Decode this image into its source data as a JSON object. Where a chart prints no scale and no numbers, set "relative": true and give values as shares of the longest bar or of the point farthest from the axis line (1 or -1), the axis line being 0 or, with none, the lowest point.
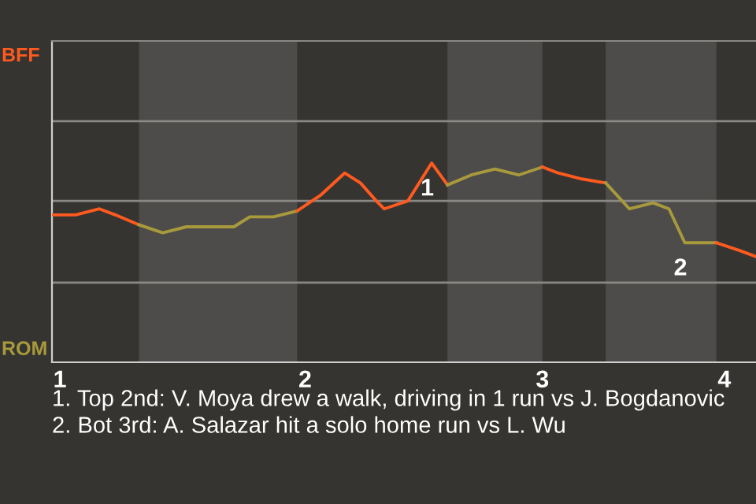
{
  "chart_data": {
    "type": "line",
    "relative": true,
    "categories": [
      null,
      "1",
      null,
      null,
      null,
      null,
      null,
      null,
      null,
      null,
      null,
      null,
      null,
      null,
      null,
      null,
      null,
      null,
      null,
      null,
      null,
      null,
      null,
      null,
      null,
      null,
      null,
      null,
      null,
      null,
      null,
      null,
      "2",
      null,
      null,
      null,
      null,
      null,
      null,
      null,
      null,
      null,
      null,
      null,
      null,
      null,
      null,
      null,
      null,
      null,
      null,
      null,
      null,
      null,
      null,
      null,
      null,
      null,
      null,
      null,
      null,
      null,
      "3",
      null,
      null,
      null,
      null,
      null,
      null,
      null,
      null,
      null,
      null,
      null,
      null,
      null,
      null,
      null,
      null,
      null,
      null,
      null,
      null,
      null,
      null,
      "4",
      null,
      null,
      null,
      null
    ],
    "series": [
      {
        "color": "#ff5a1f",
        "values": [
          0.74,
          null,
          0.74,
          0.74,
          null,
          null,
          0.77,
          null,
          0.74,
          null,
          null,
          0.69,
          null,
          null,
          null,
          null,
          null,
          null,
          null,
          null,
          null,
          null,
          null,
          null,
          null,
          null,
          null,
          null,
          null,
          null,
          null,
          null,
          null,
          null,
          null,
          null,
          null,
          null,
          null,
          null,
          null,
          null,
          null,
          null,
          null,
          null,
          null,
          null,
          null,
          null,
          null,
          null,
          null,
          null,
          null,
          null,
          null,
          null,
          null,
          null,
          null,
          null,
          null,
          null,
          null,
          null,
          null,
          null,
          null,
          null,
          null,
          null,
          null,
          null,
          null,
          null,
          null,
          null,
          null,
          null,
          null,
          null,
          null,
          null,
          null,
          null,
          null,
          null,
          null,
          null
        ]
      },
      {
        "color": "#a89a3c",
        "values": [
          null,
          null,
          null,
          null,
          null,
          null,
          null,
          null,
          null,
          null,
          null,
          0.69,
          null,
          null,
          0.65,
          null,
          null,
          0.68,
          null,
          null,
          null,
          null,
          null,
          0.68,
          null,
          0.73,
          null,
          null,
          0.73,
          null,
          null,
          0.76,
          null,
          null,
          null,
          null,
          null,
          null,
          null,
          null,
          null,
          null,
          null,
          null,
          null,
          null,
          null,
          null,
          null,
          null,
          null,
          null,
          null,
          null,
          null,
          null,
          null,
          null,
          null,
          null,
          null,
          null,
          null,
          null,
          null,
          null,
          null,
          null,
          null,
          null,
          null,
          null,
          null,
          null,
          null,
          null,
          null,
          null,
          null,
          null,
          null,
          null,
          null,
          null,
          null,
          null,
          null,
          null,
          null,
          null
        ]
      },
      {
        "color": "#ff5a1f",
        "values": [
          null,
          null,
          null,
          null,
          null,
          null,
          null,
          null,
          null,
          null,
          null,
          null,
          null,
          null,
          null,
          null,
          null,
          null,
          null,
          null,
          null,
          null,
          null,
          null,
          null,
          null,
          null,
          null,
          null,
          null,
          null,
          0.76,
          null,
          null,
          0.84,
          null,
          null,
          0.95,
          null,
          0.9,
          null,
          0.81,
          0.77,
          null,
          null,
          0.81,
          null,
          null,
          1.0,
          null,
          0.89,
          null,
          null,
          null,
          null,
          null,
          null,
          null,
          null,
          null,
          null,
          null,
          null,
          null,
          null,
          null,
          null,
          null,
          null,
          null,
          null,
          null,
          null,
          null,
          null,
          null,
          null,
          null,
          null,
          null,
          null,
          null,
          null,
          null,
          null,
          null,
          null,
          null,
          null,
          null
        ]
      },
      {
        "color": "#a89a3c",
        "values": [
          null,
          null,
          null,
          null,
          null,
          null,
          null,
          null,
          null,
          null,
          null,
          null,
          null,
          null,
          null,
          null,
          null,
          null,
          null,
          null,
          null,
          null,
          null,
          null,
          null,
          null,
          null,
          null,
          null,
          null,
          null,
          null,
          null,
          null,
          null,
          null,
          null,
          null,
          null,
          null,
          null,
          null,
          null,
          null,
          null,
          null,
          null,
          null,
          null,
          null,
          0.89,
          null,
          null,
          0.94,
          null,
          null,
          0.97,
          null,
          null,
          0.94,
          null,
          null,
          0.98,
          null,
          null,
          null,
          null,
          null,
          null,
          null,
          null,
          null,
          null,
          null,
          null,
          null,
          null,
          null,
          null,
          null,
          null,
          null,
          null,
          null,
          null,
          null,
          null,
          null,
          null,
          null
        ]
      },
      {
        "color": "#ff5a1f",
        "values": [
          null,
          null,
          null,
          null,
          null,
          null,
          null,
          null,
          null,
          null,
          null,
          null,
          null,
          null,
          null,
          null,
          null,
          null,
          null,
          null,
          null,
          null,
          null,
          null,
          null,
          null,
          null,
          null,
          null,
          null,
          null,
          null,
          null,
          null,
          null,
          null,
          null,
          null,
          null,
          null,
          null,
          null,
          null,
          null,
          null,
          null,
          null,
          null,
          null,
          null,
          null,
          null,
          null,
          null,
          null,
          null,
          null,
          null,
          null,
          null,
          null,
          null,
          0.98,
          null,
          0.95,
          null,
          null,
          0.92,
          null,
          null,
          0.9,
          null,
          null,
          null,
          null,
          null,
          null,
          null,
          null,
          null,
          null,
          null,
          null,
          null,
          null,
          null,
          null,
          null,
          null,
          null
        ]
      },
      {
        "color": "#a89a3c",
        "values": [
          null,
          null,
          null,
          null,
          null,
          null,
          null,
          null,
          null,
          null,
          null,
          null,
          null,
          null,
          null,
          null,
          null,
          null,
          null,
          null,
          null,
          null,
          null,
          null,
          null,
          null,
          null,
          null,
          null,
          null,
          null,
          null,
          null,
          null,
          null,
          null,
          null,
          null,
          null,
          null,
          null,
          null,
          null,
          null,
          null,
          null,
          null,
          null,
          null,
          null,
          null,
          null,
          null,
          null,
          null,
          null,
          null,
          null,
          null,
          null,
          null,
          null,
          null,
          null,
          null,
          null,
          null,
          null,
          null,
          null,
          0.9,
          null,
          null,
          0.77,
          null,
          null,
          0.8,
          null,
          0.77,
          null,
          0.6,
          null,
          null,
          null,
          0.6,
          null,
          null,
          null,
          null,
          null
        ]
      },
      {
        "color": "#ff5a1f",
        "values": [
          null,
          null,
          null,
          null,
          null,
          null,
          null,
          null,
          null,
          null,
          null,
          null,
          null,
          null,
          null,
          null,
          null,
          null,
          null,
          null,
          null,
          null,
          null,
          null,
          null,
          null,
          null,
          null,
          null,
          null,
          null,
          null,
          null,
          null,
          null,
          null,
          null,
          null,
          null,
          null,
          null,
          null,
          null,
          null,
          null,
          null,
          null,
          null,
          null,
          null,
          null,
          null,
          null,
          null,
          null,
          null,
          null,
          null,
          null,
          null,
          null,
          null,
          null,
          null,
          null,
          null,
          null,
          null,
          null,
          null,
          null,
          null,
          null,
          null,
          null,
          null,
          null,
          null,
          null,
          null,
          null,
          null,
          null,
          null,
          0.6,
          null,
          null,
          0.56,
          null,
          0.53
        ]
      }
    ],
    "ref_lines": [
      {
        "axis": "y",
        "value": 0.4,
        "color": "#8a8884"
      },
      {
        "axis": "y",
        "value": 0.81,
        "color": "#8a8884"
      },
      {
        "axis": "y",
        "value": 1.21,
        "color": "#8a8884"
      }
    ],
    "marker": "none",
    "line_style": "solid",
    "annotations": [
      "BFF",
      "ROM",
      {
        "text": "1",
        "y": 1.0
      },
      {
        "text": "2",
        "y": 0.6
      },
      "1. Top 2nd: V. Moya drew a walk, driving in 1 run vs J. Bogdanovic",
      "2. Bot 3rd: A. Salazar hit a solo home run vs L. Wu"
    ]
  }
}
